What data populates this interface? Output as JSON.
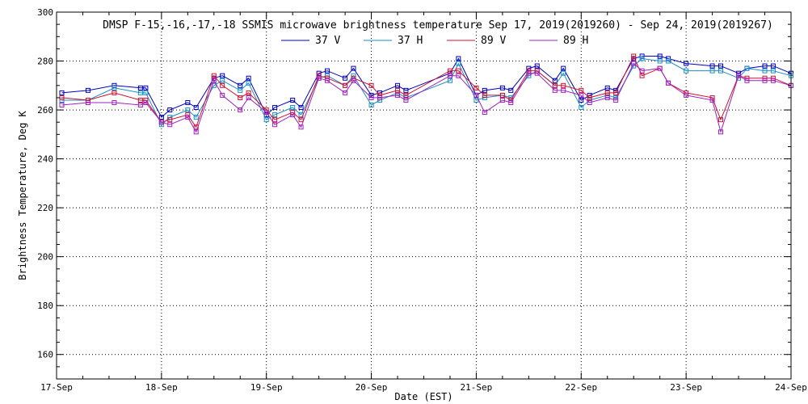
{
  "chart_data": {
    "type": "line",
    "title": "DMSP F-15,-16,-17,-18 SSMIS microwave brightness temperature Sep 17, 2019(2019260) - Sep 24, 2019(2019267)",
    "xlabel": "Date (EST)",
    "ylabel": "Brightness Temperature, Deg K",
    "xlim": [
      0,
      7
    ],
    "ylim": [
      150,
      300
    ],
    "x_ticks": [
      {
        "value": 0,
        "label": "17-Sep"
      },
      {
        "value": 1,
        "label": "18-Sep"
      },
      {
        "value": 2,
        "label": "19-Sep"
      },
      {
        "value": 3,
        "label": "20-Sep"
      },
      {
        "value": 4,
        "label": "21-Sep"
      },
      {
        "value": 5,
        "label": "22-Sep"
      },
      {
        "value": 6,
        "label": "23-Sep"
      },
      {
        "value": 7,
        "label": "24-Sep"
      }
    ],
    "y_ticks": [
      160,
      180,
      200,
      220,
      240,
      260,
      280,
      300
    ],
    "grid": true,
    "legend_position": "top",
    "x_unit": "days since 17-Sep",
    "series": [
      {
        "name": "37 V",
        "color": "#0000c0",
        "x": [
          0.05,
          0.3,
          0.55,
          0.8,
          0.85,
          1.0,
          1.08,
          1.25,
          1.33,
          1.5,
          1.58,
          1.75,
          1.83,
          2.0,
          2.08,
          2.25,
          2.33,
          2.5,
          2.58,
          2.75,
          2.83,
          3.0,
          3.08,
          3.25,
          3.33,
          3.75,
          3.83,
          4.0,
          4.08,
          4.25,
          4.33,
          4.5,
          4.58,
          4.75,
          4.83,
          5.0,
          5.08,
          5.25,
          5.33,
          5.5,
          5.58,
          5.75,
          5.83,
          6.0,
          6.25,
          6.33,
          6.5,
          6.58,
          6.75,
          6.83,
          7.0
        ],
        "y": [
          267,
          268,
          270,
          269,
          269,
          257,
          260,
          263,
          261,
          273,
          274,
          270,
          273,
          258,
          261,
          264,
          261,
          275,
          276,
          273,
          277,
          266,
          267,
          270,
          268,
          275,
          281,
          266,
          268,
          269,
          268,
          277,
          278,
          272,
          277,
          264,
          266,
          269,
          268,
          281,
          282,
          282,
          281,
          279,
          278,
          278,
          275,
          277,
          278,
          278,
          275
        ]
      },
      {
        "name": "37 H",
        "color": "#1a8ec8",
        "x": [
          0.05,
          0.3,
          0.55,
          0.8,
          0.85,
          1.0,
          1.08,
          1.25,
          1.33,
          1.5,
          1.58,
          1.75,
          1.83,
          2.0,
          2.08,
          2.25,
          2.33,
          2.5,
          2.58,
          2.75,
          2.83,
          3.0,
          3.08,
          3.25,
          3.33,
          3.75,
          3.83,
          4.0,
          4.08,
          4.25,
          4.33,
          4.5,
          4.58,
          4.75,
          4.83,
          5.0,
          5.08,
          5.25,
          5.33,
          5.5,
          5.58,
          5.75,
          5.83,
          6.0,
          6.25,
          6.33,
          6.5,
          6.58,
          6.75,
          6.83,
          7.0
        ],
        "y": [
          264,
          264,
          269,
          267,
          267,
          254,
          257,
          260,
          257,
          270,
          272,
          268,
          271,
          256,
          258,
          261,
          258,
          273,
          274,
          270,
          274,
          262,
          264,
          267,
          265,
          272,
          279,
          264,
          265,
          266,
          265,
          274,
          276,
          270,
          275,
          261,
          264,
          266,
          265,
          278,
          281,
          280,
          280,
          276,
          276,
          276,
          273,
          277,
          276,
          276,
          274
        ]
      },
      {
        "name": "89 V",
        "color": "#d01030",
        "x": [
          0.05,
          0.3,
          0.55,
          0.8,
          0.85,
          1.0,
          1.08,
          1.25,
          1.33,
          1.5,
          1.58,
          1.75,
          1.83,
          2.0,
          2.08,
          2.25,
          2.33,
          2.5,
          2.58,
          2.75,
          2.83,
          3.0,
          3.08,
          3.25,
          3.33,
          3.75,
          3.83,
          4.0,
          4.08,
          4.25,
          4.33,
          4.5,
          4.58,
          4.75,
          4.83,
          5.0,
          5.08,
          5.25,
          5.33,
          5.5,
          5.58,
          5.75,
          5.83,
          6.0,
          6.25,
          6.33,
          6.5,
          6.58,
          6.75,
          6.83,
          7.0
        ],
        "y": [
          265,
          264,
          267,
          264,
          264,
          255,
          256,
          258,
          253,
          274,
          270,
          265,
          267,
          260,
          256,
          259,
          256,
          274,
          273,
          270,
          273,
          270,
          266,
          268,
          266,
          276,
          276,
          269,
          266,
          266,
          264,
          276,
          276,
          270,
          270,
          268,
          265,
          267,
          267,
          282,
          274,
          277,
          271,
          267,
          265,
          256,
          274,
          273,
          273,
          273,
          270
        ]
      },
      {
        "name": "89 H",
        "color": "#a020c0",
        "x": [
          0.05,
          0.3,
          0.55,
          0.8,
          0.85,
          1.0,
          1.08,
          1.25,
          1.33,
          1.5,
          1.58,
          1.75,
          1.83,
          2.0,
          2.08,
          2.25,
          2.33,
          2.5,
          2.58,
          2.75,
          2.83,
          3.0,
          3.08,
          3.25,
          3.33,
          3.75,
          3.83,
          4.0,
          4.08,
          4.25,
          4.33,
          4.5,
          4.58,
          4.75,
          4.83,
          5.0,
          5.08,
          5.25,
          5.33,
          5.5,
          5.58,
          5.75,
          5.83,
          6.0,
          6.25,
          6.33,
          6.5,
          6.58,
          6.75,
          6.83,
          7.0
        ],
        "y": [
          262,
          263,
          263,
          262,
          263,
          255,
          254,
          257,
          251,
          272,
          266,
          260,
          265,
          259,
          254,
          258,
          253,
          273,
          272,
          267,
          272,
          265,
          265,
          266,
          264,
          274,
          274,
          266,
          259,
          264,
          263,
          275,
          275,
          268,
          268,
          266,
          263,
          265,
          264,
          279,
          276,
          277,
          271,
          266,
          264,
          251,
          274,
          272,
          272,
          272,
          270
        ]
      }
    ]
  }
}
